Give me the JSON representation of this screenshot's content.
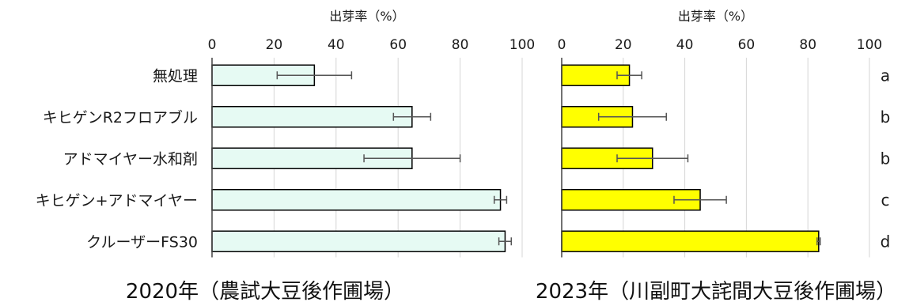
{
  "chart_data": [
    {
      "type": "bar",
      "orientation": "horizontal",
      "title": "2020年（農試大豆後作圃場）",
      "xlabel": "出芽率（%）",
      "xlim": [
        0,
        100
      ],
      "xticks": [
        0,
        20,
        40,
        60,
        80,
        100
      ],
      "grid": true,
      "categories": [
        "無処理",
        "キヒゲンR2フロアブル",
        "アドマイヤー水和剤",
        "キヒゲン+アドマイヤー",
        "クルーザーFS30"
      ],
      "values": [
        33,
        64.5,
        64.5,
        93,
        94.5
      ],
      "errors": [
        12,
        6,
        15.5,
        2,
        2
      ],
      "bar_color": "#E6FAF3"
    },
    {
      "type": "bar",
      "orientation": "horizontal",
      "title": "2023年（川副町大詫間大豆後作圃場）",
      "xlabel": "出芽率（%）",
      "xlim": [
        0,
        100
      ],
      "xticks": [
        0,
        20,
        40,
        60,
        80,
        100
      ],
      "grid": true,
      "categories": [
        "無処理",
        "キヒゲンR2フロアブル",
        "アドマイヤー水和剤",
        "キヒゲン+アドマイヤー",
        "クルーザーFS30"
      ],
      "values": [
        22,
        23,
        29.5,
        45,
        83.5
      ],
      "errors": [
        4,
        11,
        11.5,
        8.5,
        0.5
      ],
      "significance": [
        "a",
        "b",
        "b",
        "c",
        "d"
      ],
      "bar_color": "#FFFF00"
    }
  ]
}
